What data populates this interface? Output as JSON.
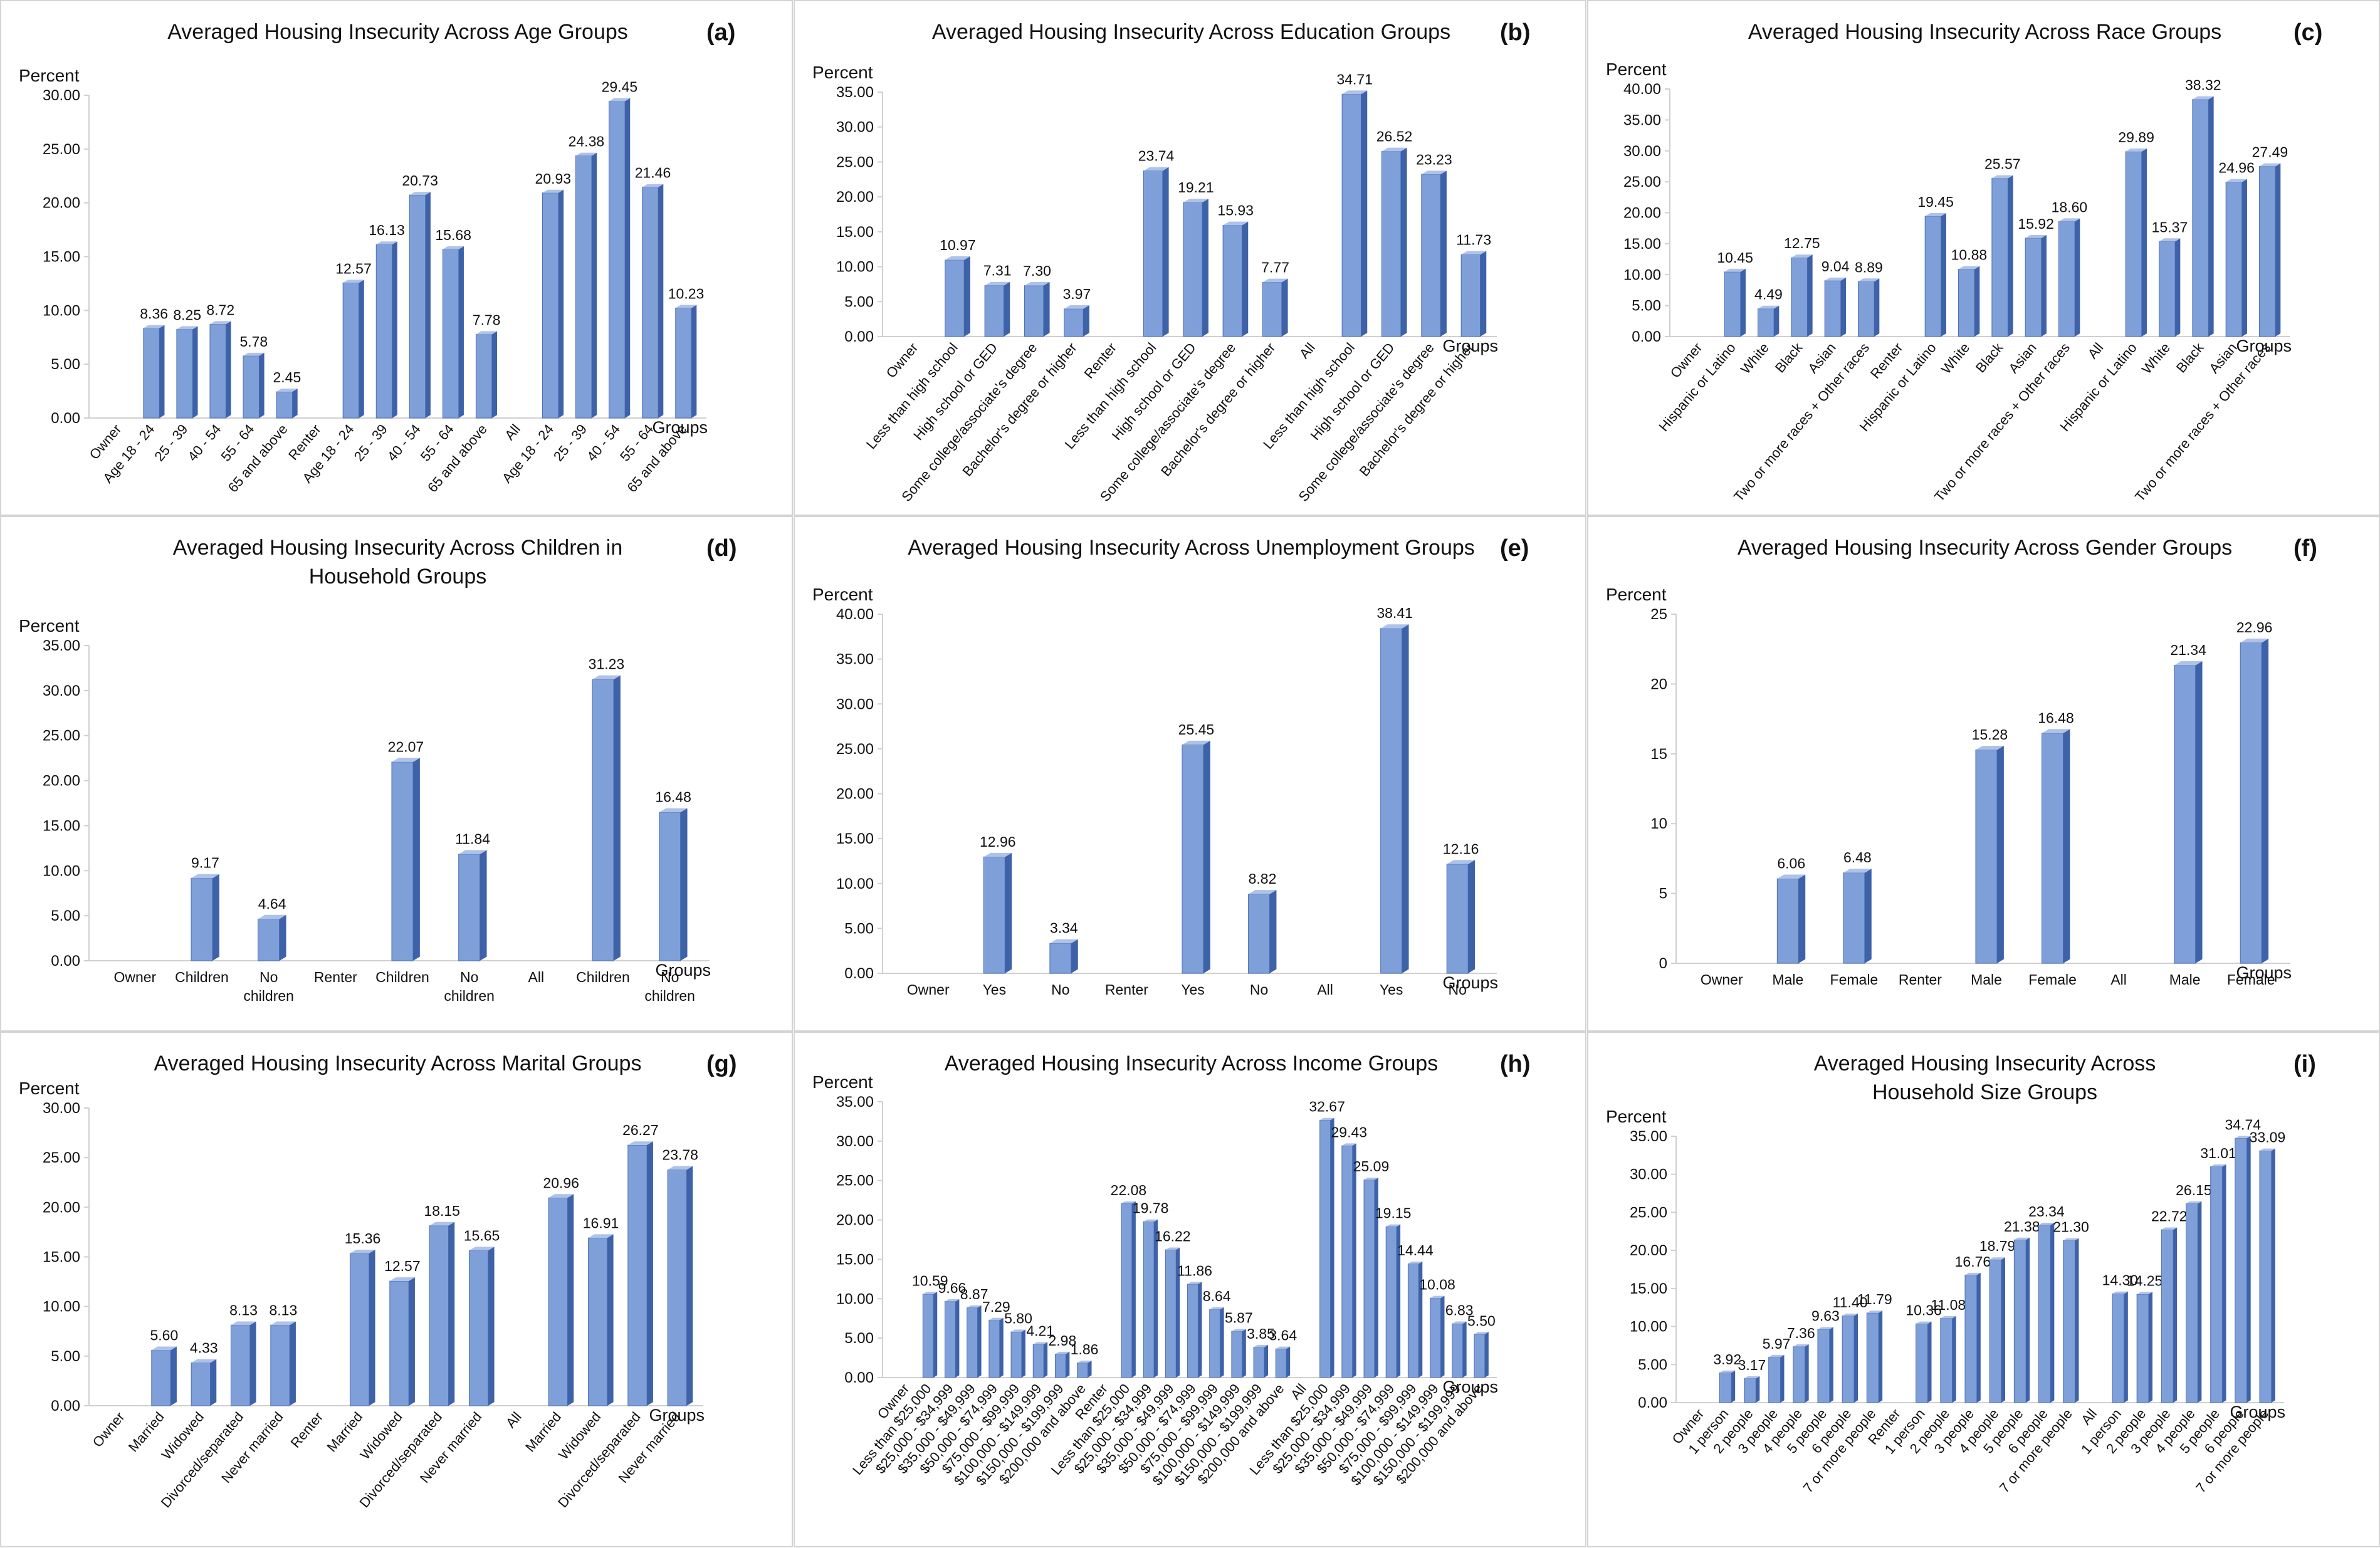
{
  "chart_data": [
    {
      "id": "a",
      "type": "bar",
      "title": "Averaged Housing Insecurity Across Age Groups",
      "ylabel": "Percent",
      "xlabel": "Groups",
      "ylim": [
        0,
        30
      ],
      "yticks": [
        "0.00",
        "5.00",
        "10.00",
        "15.00",
        "20.00",
        "25.00",
        "30.00"
      ],
      "categories": [
        "Owner",
        "Age 18 - 24",
        "25 - 39",
        "40 - 54",
        "55 - 64",
        "65 and above",
        "Renter",
        "Age 18 - 24",
        "25 - 39",
        "40 - 54",
        "55 - 64",
        "65 and above",
        "All",
        "Age 18 - 24",
        "25 - 39",
        "40 - 54",
        "55 - 64",
        "65 and above"
      ],
      "values": [
        null,
        8.36,
        8.25,
        8.72,
        5.78,
        2.45,
        null,
        12.57,
        16.13,
        20.73,
        15.68,
        7.78,
        null,
        20.93,
        24.38,
        29.45,
        21.46,
        10.23
      ],
      "value_labels": [
        "",
        "8.36",
        "8.25",
        "8.72",
        "5.78",
        "2.45",
        "",
        "12.57",
        "16.13",
        "20.73",
        "15.68",
        "7.78",
        "",
        "20.93",
        "24.38",
        "29.45",
        "21.46",
        "10.23"
      ],
      "rotate_labels": true,
      "grid": false
    },
    {
      "id": "b",
      "type": "bar",
      "title": "Averaged Housing Insecurity Across Education Groups",
      "ylabel": "Percent",
      "xlabel": "Groups",
      "ylim": [
        0,
        35
      ],
      "yticks": [
        "0.00",
        "5.00",
        "10.00",
        "15.00",
        "20.00",
        "25.00",
        "30.00",
        "35.00"
      ],
      "categories": [
        "Owner",
        "Less than high school",
        "High school or GED",
        "Some college/associate's degree",
        "Bachelor's degree or higher",
        "Renter",
        "Less than high school",
        "High school or GED",
        "Some college/associate's degree",
        "Bachelor's degree or higher",
        "All",
        "Less than high school",
        "High school or GED",
        "Some college/associate's degree",
        "Bachelor's degree or higher"
      ],
      "values": [
        null,
        10.97,
        7.31,
        7.3,
        3.97,
        null,
        23.74,
        19.21,
        15.93,
        7.77,
        null,
        34.71,
        26.52,
        23.23,
        11.73
      ],
      "value_labels": [
        "",
        "10.97",
        "7.31",
        "7.30",
        "3.97",
        "",
        "23.74",
        "19.21",
        "15.93",
        "7.77",
        "",
        "34.71",
        "26.52",
        "23.23",
        "11.73"
      ],
      "rotate_labels": true,
      "grid": false
    },
    {
      "id": "c",
      "type": "bar",
      "title": "Averaged Housing Insecurity Across Race Groups",
      "ylabel": "Percent",
      "xlabel": "Groups",
      "ylim": [
        0,
        40
      ],
      "yticks": [
        "0.00",
        "5.00",
        "10.00",
        "15.00",
        "20.00",
        "25.00",
        "30.00",
        "35.00",
        "40.00"
      ],
      "categories": [
        "Owner",
        "Hispanic or Latino",
        "White",
        "Black",
        "Asian",
        "Two or more races + Other races",
        "Renter",
        "Hispanic or Latino",
        "White",
        "Black",
        "Asian",
        "Two or more races + Other races",
        "All",
        "Hispanic or Latino",
        "White",
        "Black",
        "Asian",
        "Two or more races + Other races"
      ],
      "values": [
        null,
        10.45,
        4.49,
        12.75,
        9.04,
        8.89,
        null,
        19.45,
        10.88,
        25.57,
        15.92,
        18.6,
        null,
        29.89,
        15.37,
        38.32,
        24.96,
        27.49
      ],
      "value_labels": [
        "",
        "10.45",
        "4.49",
        "12.75",
        "9.04",
        "8.89",
        "",
        "19.45",
        "10.88",
        "25.57",
        "15.92",
        "18.60",
        "",
        "29.89",
        "15.37",
        "38.32",
        "24.96",
        "27.49"
      ],
      "rotate_labels": true,
      "grid": false
    },
    {
      "id": "d",
      "type": "bar",
      "title": "Averaged Housing Insecurity Across Children in Household Groups",
      "ylabel": "Percent",
      "xlabel": "Groups",
      "ylim": [
        0,
        35
      ],
      "yticks": [
        "0.00",
        "5.00",
        "10.00",
        "15.00",
        "20.00",
        "25.00",
        "30.00",
        "35.00"
      ],
      "categories": [
        "Owner",
        "Children",
        "No children",
        "Renter",
        "Children",
        "No children",
        "All",
        "Children",
        "No children"
      ],
      "values": [
        null,
        9.17,
        4.64,
        null,
        22.07,
        11.84,
        null,
        31.23,
        16.48
      ],
      "value_labels": [
        "",
        "9.17",
        "4.64",
        "",
        "22.07",
        "11.84",
        "",
        "31.23",
        "16.48"
      ],
      "rotate_labels": false,
      "grid": false
    },
    {
      "id": "e",
      "type": "bar",
      "title": "Averaged Housing Insecurity Across Unemployment Groups",
      "ylabel": "Percent",
      "xlabel": "Groups",
      "ylim": [
        0,
        40
      ],
      "yticks": [
        "0.00",
        "5.00",
        "10.00",
        "15.00",
        "20.00",
        "25.00",
        "30.00",
        "35.00",
        "40.00"
      ],
      "categories": [
        "Owner",
        "Yes",
        "No",
        "Renter",
        "Yes",
        "No",
        "All",
        "Yes",
        "No"
      ],
      "values": [
        null,
        12.96,
        3.34,
        null,
        25.45,
        8.82,
        null,
        38.41,
        12.16
      ],
      "value_labels": [
        "",
        "12.96",
        "3.34",
        "",
        "25.45",
        "8.82",
        "",
        "38.41",
        "12.16"
      ],
      "rotate_labels": false,
      "grid": false
    },
    {
      "id": "f",
      "type": "bar",
      "title": "Averaged Housing Insecurity Across Gender Groups",
      "ylabel": "Percent",
      "xlabel": "Groups",
      "ylim": [
        0,
        25
      ],
      "yticks": [
        "0",
        "5",
        "10",
        "15",
        "20",
        "25"
      ],
      "categories": [
        "Owner",
        "Male",
        "Female",
        "Renter",
        "Male",
        "Female",
        "All",
        "Male",
        "Female"
      ],
      "values": [
        null,
        6.06,
        6.48,
        null,
        15.28,
        16.48,
        null,
        21.34,
        22.96
      ],
      "value_labels": [
        "",
        "6.06",
        "6.48",
        "",
        "15.28",
        "16.48",
        "",
        "21.34",
        "22.96"
      ],
      "rotate_labels": false,
      "grid": false
    },
    {
      "id": "g",
      "type": "bar",
      "title": "Averaged Housing Insecurity Across Marital Groups",
      "ylabel": "Percent",
      "xlabel": "Groups",
      "ylim": [
        0,
        30
      ],
      "yticks": [
        "0.00",
        "5.00",
        "10.00",
        "15.00",
        "20.00",
        "25.00",
        "30.00"
      ],
      "categories": [
        "Owner",
        "Married",
        "Widowed",
        "Divorced/separated",
        "Never married",
        "Renter",
        "Married",
        "Widowed",
        "Divorced/separated",
        "Never married",
        "All",
        "Married",
        "Widowed",
        "Divorced/separated",
        "Never married"
      ],
      "values": [
        null,
        5.6,
        4.33,
        8.13,
        8.13,
        null,
        15.36,
        12.57,
        18.15,
        15.65,
        null,
        20.96,
        16.91,
        26.27,
        23.78
      ],
      "value_labels": [
        "",
        "5.60",
        "4.33",
        "8.13",
        "8.13",
        "",
        "15.36",
        "12.57",
        "18.15",
        "15.65",
        "",
        "20.96",
        "16.91",
        "26.27",
        "23.78"
      ],
      "rotate_labels": true,
      "grid": false
    },
    {
      "id": "h",
      "type": "bar",
      "title": "Averaged Housing Insecurity Across Income Groups",
      "ylabel": "Percent",
      "xlabel": "Groups",
      "ylim": [
        0,
        35
      ],
      "yticks": [
        "0.00",
        "5.00",
        "10.00",
        "15.00",
        "20.00",
        "25.00",
        "30.00",
        "35.00"
      ],
      "categories": [
        "Owner",
        "Less than $25,000",
        "$25,000 - $34,999",
        "$35,000 - $49,999",
        "$50,000 - $74,999",
        "$75,000 - $99,999",
        "$100,000 - $149,999",
        "$150,000 - $199,999",
        "$200,000 and above",
        "Renter",
        "Less than $25,000",
        "$25,000 - $34,999",
        "$35,000 - $49,999",
        "$50,000 - $74,999",
        "$75,000 - $99,999",
        "$100,000 - $149,999",
        "$150,000 - $199,999",
        "$200,000 and above",
        "All",
        "Less than $25,000",
        "$25,000 - $34,999",
        "$35,000 - $49,999",
        "$50,000 - $74,999",
        "$75,000 - $99,999",
        "$100,000 - $149,999",
        "$150,000 - $199,999",
        "$200,000 and above"
      ],
      "values": [
        null,
        10.59,
        9.66,
        8.87,
        7.29,
        5.8,
        4.21,
        2.98,
        1.86,
        null,
        22.08,
        19.78,
        16.22,
        11.86,
        8.64,
        5.87,
        3.85,
        3.64,
        null,
        32.67,
        29.43,
        25.09,
        19.15,
        14.44,
        10.08,
        6.83,
        5.5
      ],
      "value_labels": [
        "",
        "10.59",
        "9.66",
        "8.87",
        "7.29",
        "5.80",
        "4.21",
        "2.98",
        "1.86",
        "",
        "22.08",
        "19.78",
        "16.22",
        "11.86",
        "8.64",
        "5.87",
        "3.85",
        "3.64",
        "",
        "32.67",
        "29.43",
        "25.09",
        "19.15",
        "14.44",
        "10.08",
        "6.83",
        "5.50"
      ],
      "rotate_labels": true,
      "grid": false
    },
    {
      "id": "i",
      "type": "bar",
      "title": "Averaged Housing Insecurity Across Household Size Groups",
      "ylabel": "Percent",
      "xlabel": "Groups",
      "ylim": [
        0,
        35
      ],
      "yticks": [
        "0.00",
        "5.00",
        "10.00",
        "15.00",
        "20.00",
        "25.00",
        "30.00",
        "35.00"
      ],
      "categories": [
        "Owner",
        "1 person",
        "2 people",
        "3 people",
        "4 people",
        "5 people",
        "6 people",
        "7 or more people",
        "Renter",
        "1 person",
        "2 people",
        "3 people",
        "4 people",
        "5 people",
        "6 people",
        "7 or more people",
        "All",
        "1 person",
        "2 people",
        "3 people",
        "4 people",
        "5 people",
        "6 people",
        "7 or more people"
      ],
      "values": [
        null,
        3.92,
        3.17,
        5.97,
        7.36,
        9.63,
        11.4,
        11.79,
        null,
        10.36,
        11.08,
        16.76,
        18.79,
        21.38,
        23.34,
        21.3,
        null,
        14.3,
        14.25,
        22.72,
        26.15,
        31.01,
        34.74,
        33.09
      ],
      "value_labels": [
        "",
        "3.92",
        "3.17",
        "5.97",
        "7.36",
        "9.63",
        "11.40",
        "11.79",
        "",
        "10.36",
        "11.08",
        "16.76",
        "18.79",
        "21.38",
        "23.34",
        "21.30",
        "",
        "14.30",
        "14.25",
        "22.72",
        "26.15",
        "31.01",
        "34.74",
        "33.09"
      ],
      "rotate_labels": true,
      "grid": false
    }
  ],
  "panel_labels": [
    "(a)",
    "(b)",
    "(c)",
    "(d)",
    "(e)",
    "(f)",
    "(g)",
    "(h)",
    "(i)"
  ],
  "colors": {
    "bar_front": "#7f9fd9",
    "bar_side": "#3e62a8",
    "bar_top": "#aec2ea",
    "axis": "#d0d0d0",
    "text": "#111111"
  }
}
